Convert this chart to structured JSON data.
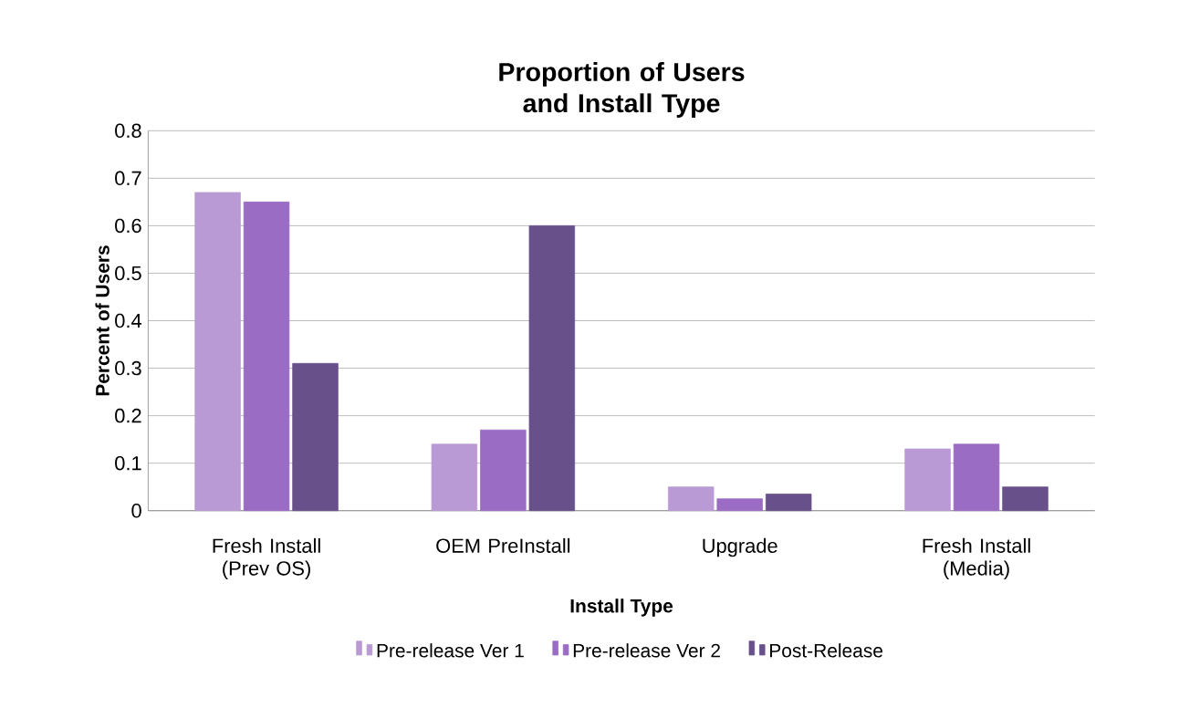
{
  "chart_data": {
    "type": "bar",
    "title": "Proportion of Users and Install Type",
    "xlabel": "Install Type",
    "ylabel": "Percent of Users",
    "categories": [
      "Fresh Install (Prev OS)",
      "OEM PreInstall",
      "Upgrade",
      "Fresh Install (Media)"
    ],
    "series": [
      {
        "name": "Pre-release Ver 1",
        "color": "#b99ad4",
        "values": [
          0.67,
          0.14,
          0.05,
          0.13
        ]
      },
      {
        "name": "Pre-release Ver 2",
        "color": "#9a6cc4",
        "values": [
          0.65,
          0.17,
          0.025,
          0.14
        ]
      },
      {
        "name": "Post-Release",
        "color": "#68508a",
        "values": [
          0.31,
          0.6,
          0.035,
          0.05
        ]
      }
    ],
    "ylim": [
      0,
      0.8
    ],
    "yticks": [
      0,
      0.1,
      0.2,
      0.3,
      0.4,
      0.5,
      0.6,
      0.7,
      0.8
    ],
    "grid": "y",
    "legend": "bottom"
  }
}
